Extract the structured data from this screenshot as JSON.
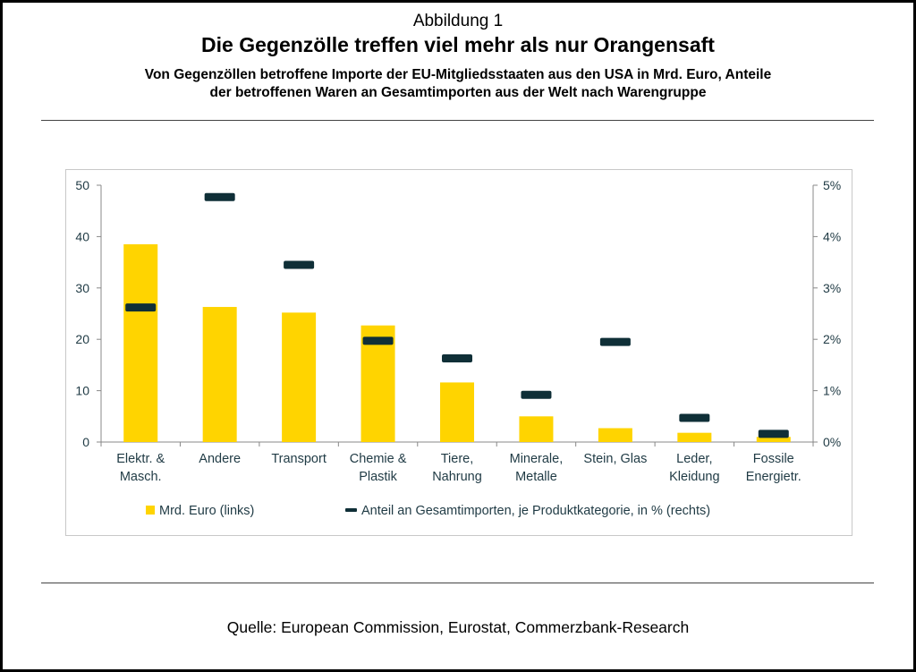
{
  "header": {
    "figure_label": "Abbildung 1",
    "title": "Die Gegenzölle treffen viel mehr als nur Orangensaft",
    "subtitle_line1": "Von Gegenzöllen betroffene Importe der EU-Mitgliedsstaaten aus den USA in Mrd. Euro, Anteile",
    "subtitle_line2": "der betroffenen Waren an Gesamtimporten aus der Welt nach Warengruppe"
  },
  "footer": {
    "source": "Quelle: European Commission, Eurostat, Commerzbank-Research"
  },
  "colors": {
    "bar": "#FFD400",
    "marker": "#0F2F37",
    "axis_text": "#1F3A44"
  },
  "chart_data": {
    "type": "bar",
    "categories": [
      [
        "Elektr. &",
        "Masch."
      ],
      [
        "Andere"
      ],
      [
        "Transport"
      ],
      [
        "Chemie &",
        "Plastik"
      ],
      [
        "Tiere,",
        "Nahrung"
      ],
      [
        "Minerale,",
        "Metalle"
      ],
      [
        "Stein, Glas"
      ],
      [
        "Leder,",
        "Kleidung"
      ],
      [
        "Fossile",
        "Energietr."
      ]
    ],
    "series": [
      {
        "name": "Mrd. Euro (links)",
        "type": "bar",
        "axis": "left",
        "values": [
          38.5,
          26.3,
          25.2,
          22.7,
          11.6,
          5.0,
          2.7,
          1.8,
          1.0
        ]
      },
      {
        "name": "Anteil an Gesamtimporten, je Produktkategorie, in % (rechts)",
        "type": "marker",
        "axis": "right",
        "values": [
          2.62,
          4.77,
          3.45,
          1.97,
          1.63,
          0.92,
          1.95,
          0.47,
          0.16
        ]
      }
    ],
    "y_left": {
      "min": 0,
      "max": 50,
      "ticks": [
        "0",
        "10",
        "20",
        "30",
        "40",
        "50"
      ]
    },
    "y_right": {
      "min": 0,
      "max": 5,
      "ticks": [
        "0%",
        "1%",
        "2%",
        "3%",
        "4%",
        "5%"
      ]
    },
    "grid": false,
    "legend_position": "bottom"
  }
}
